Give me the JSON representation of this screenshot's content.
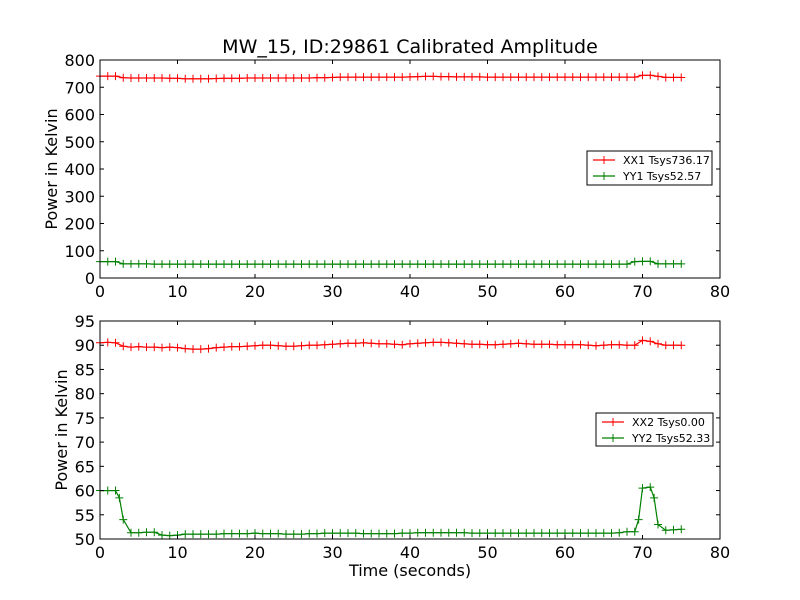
{
  "figure": {
    "title": "MW_15, ID:29861 Calibrated Amplitude",
    "xlabel": "Time (seconds)"
  },
  "colors": {
    "xx": "#ff0000",
    "yy": "#008000",
    "axes": "#000000",
    "background": "#ffffff"
  },
  "chart_data": [
    {
      "type": "line",
      "title": "MW_15, ID:29861 Calibrated Amplitude",
      "xlabel": "",
      "ylabel": "Power in Kelvin",
      "xlim": [
        0,
        80
      ],
      "ylim": [
        0,
        800
      ],
      "xticks": [
        0,
        10,
        20,
        30,
        40,
        50,
        60,
        70,
        80
      ],
      "yticks": [
        0,
        100,
        200,
        300,
        400,
        500,
        600,
        700,
        800
      ],
      "grid": false,
      "legend_position": "right",
      "series": [
        {
          "name": "XX1 Tsys736.17",
          "color": "#ff0000",
          "marker": "plus",
          "x": [
            0,
            1,
            2,
            3,
            4,
            5,
            6,
            7,
            8,
            9,
            10,
            11,
            12,
            13,
            14,
            15,
            16,
            17,
            18,
            19,
            20,
            21,
            22,
            23,
            24,
            25,
            26,
            27,
            28,
            29,
            30,
            31,
            32,
            33,
            34,
            35,
            36,
            37,
            38,
            39,
            40,
            41,
            42,
            43,
            44,
            45,
            46,
            47,
            48,
            49,
            50,
            51,
            52,
            53,
            54,
            55,
            56,
            57,
            58,
            59,
            60,
            61,
            62,
            63,
            64,
            65,
            66,
            67,
            68,
            69,
            70,
            71,
            72,
            73,
            74,
            75
          ],
          "y": [
            741,
            741,
            741,
            735,
            734,
            734,
            734,
            734,
            734,
            733,
            733,
            731,
            731,
            731,
            731,
            732,
            733,
            733,
            733,
            734,
            734,
            734,
            734,
            734,
            734,
            734,
            734,
            734,
            735,
            735,
            736,
            737,
            737,
            737,
            737,
            737,
            737,
            737,
            737,
            737,
            738,
            739,
            740,
            740,
            739,
            739,
            738,
            738,
            738,
            738,
            737,
            737,
            737,
            737,
            737,
            737,
            737,
            737,
            737,
            737,
            737,
            737,
            737,
            737,
            737,
            737,
            737,
            737,
            737,
            737,
            744,
            744,
            740,
            736,
            736,
            736
          ]
        },
        {
          "name": "YY1 Tsys52.57",
          "color": "#008000",
          "marker": "plus",
          "x": [
            0,
            1,
            2,
            3,
            4,
            5,
            6,
            7,
            8,
            9,
            10,
            11,
            12,
            13,
            14,
            15,
            16,
            17,
            18,
            19,
            20,
            21,
            22,
            23,
            24,
            25,
            26,
            27,
            28,
            29,
            30,
            31,
            32,
            33,
            34,
            35,
            36,
            37,
            38,
            39,
            40,
            41,
            42,
            43,
            44,
            45,
            46,
            47,
            48,
            49,
            50,
            51,
            52,
            53,
            54,
            55,
            56,
            57,
            58,
            59,
            60,
            61,
            62,
            63,
            64,
            65,
            66,
            67,
            68,
            69,
            70,
            71,
            72,
            73,
            74,
            75
          ],
          "y": [
            60,
            60,
            60,
            52,
            52,
            52,
            52,
            51,
            51,
            51,
            51,
            51,
            51,
            51,
            51,
            51,
            51,
            51,
            51,
            51,
            51,
            51,
            51,
            51,
            51,
            51,
            51,
            51,
            51,
            51,
            51,
            51,
            51,
            51,
            51,
            51,
            51,
            51,
            51,
            51,
            51,
            51,
            51,
            51,
            51,
            51,
            51,
            51,
            51,
            51,
            51,
            51,
            51,
            51,
            51,
            51,
            51,
            51,
            51,
            51,
            51,
            51,
            51,
            51,
            51,
            51,
            51,
            51,
            51,
            60,
            61,
            61,
            52,
            52,
            52,
            52
          ]
        }
      ]
    },
    {
      "type": "line",
      "title": "",
      "xlabel": "Time (seconds)",
      "ylabel": "Power in Kelvin",
      "xlim": [
        0,
        80
      ],
      "ylim": [
        50,
        95
      ],
      "xticks": [
        0,
        10,
        20,
        30,
        40,
        50,
        60,
        70,
        80
      ],
      "yticks": [
        50,
        55,
        60,
        65,
        70,
        75,
        80,
        85,
        90,
        95
      ],
      "grid": false,
      "legend_position": "right",
      "series": [
        {
          "name": "XX2 Tsys0.00",
          "color": "#ff0000",
          "marker": "plus",
          "x": [
            0,
            1,
            2,
            3,
            4,
            5,
            6,
            7,
            8,
            9,
            10,
            11,
            12,
            13,
            14,
            15,
            16,
            17,
            18,
            19,
            20,
            21,
            22,
            23,
            24,
            25,
            26,
            27,
            28,
            29,
            30,
            31,
            32,
            33,
            34,
            35,
            36,
            37,
            38,
            39,
            40,
            41,
            42,
            43,
            44,
            45,
            46,
            47,
            48,
            49,
            50,
            51,
            52,
            53,
            54,
            55,
            56,
            57,
            58,
            59,
            60,
            61,
            62,
            63,
            64,
            65,
            66,
            67,
            68,
            69,
            70,
            71,
            72,
            73,
            74,
            75
          ],
          "y": [
            90.5,
            90.6,
            90.5,
            89.8,
            89.6,
            89.7,
            89.6,
            89.6,
            89.5,
            89.6,
            89.5,
            89.3,
            89.2,
            89.2,
            89.3,
            89.5,
            89.6,
            89.7,
            89.7,
            89.8,
            89.9,
            90.0,
            90.0,
            89.9,
            89.8,
            89.8,
            89.9,
            90.0,
            90.0,
            90.1,
            90.2,
            90.3,
            90.4,
            90.4,
            90.5,
            90.4,
            90.3,
            90.3,
            90.2,
            90.1,
            90.3,
            90.4,
            90.5,
            90.6,
            90.6,
            90.5,
            90.4,
            90.3,
            90.2,
            90.2,
            90.1,
            90.1,
            90.2,
            90.3,
            90.4,
            90.3,
            90.2,
            90.2,
            90.2,
            90.1,
            90.1,
            90.1,
            90.1,
            90.0,
            89.9,
            90.0,
            90.1,
            90.1,
            90.0,
            90.0,
            91.0,
            90.8,
            90.3,
            90.0,
            90.0,
            90.0
          ]
        },
        {
          "name": "YY2 Tsys52.33",
          "color": "#008000",
          "marker": "plus",
          "x": [
            0,
            1,
            2,
            2.5,
            3,
            4,
            5,
            6,
            7,
            8,
            9,
            10,
            11,
            12,
            13,
            14,
            15,
            16,
            17,
            18,
            19,
            20,
            21,
            22,
            23,
            24,
            25,
            26,
            27,
            28,
            29,
            30,
            31,
            32,
            33,
            34,
            35,
            36,
            37,
            38,
            39,
            40,
            41,
            42,
            43,
            44,
            45,
            46,
            47,
            48,
            49,
            50,
            51,
            52,
            53,
            54,
            55,
            56,
            57,
            58,
            59,
            60,
            61,
            62,
            63,
            64,
            65,
            66,
            67,
            68,
            69,
            69.5,
            70,
            71,
            71.5,
            72,
            73,
            74,
            75
          ],
          "y": [
            60.0,
            60.0,
            60.0,
            58.5,
            54.0,
            51.3,
            51.3,
            51.4,
            51.4,
            50.8,
            50.7,
            50.8,
            51.0,
            51.0,
            51.0,
            51.0,
            51.0,
            51.1,
            51.1,
            51.1,
            51.1,
            51.2,
            51.1,
            51.1,
            51.1,
            51.0,
            51.0,
            51.0,
            51.1,
            51.1,
            51.2,
            51.2,
            51.2,
            51.2,
            51.2,
            51.1,
            51.1,
            51.1,
            51.1,
            51.1,
            51.2,
            51.2,
            51.3,
            51.3,
            51.3,
            51.3,
            51.3,
            51.3,
            51.3,
            51.2,
            51.2,
            51.2,
            51.2,
            51.2,
            51.2,
            51.2,
            51.2,
            51.2,
            51.2,
            51.2,
            51.2,
            51.2,
            51.2,
            51.2,
            51.2,
            51.2,
            51.2,
            51.2,
            51.3,
            51.5,
            51.5,
            54.0,
            60.5,
            60.7,
            58.5,
            53.0,
            51.8,
            51.9,
            52.0
          ]
        }
      ]
    }
  ]
}
